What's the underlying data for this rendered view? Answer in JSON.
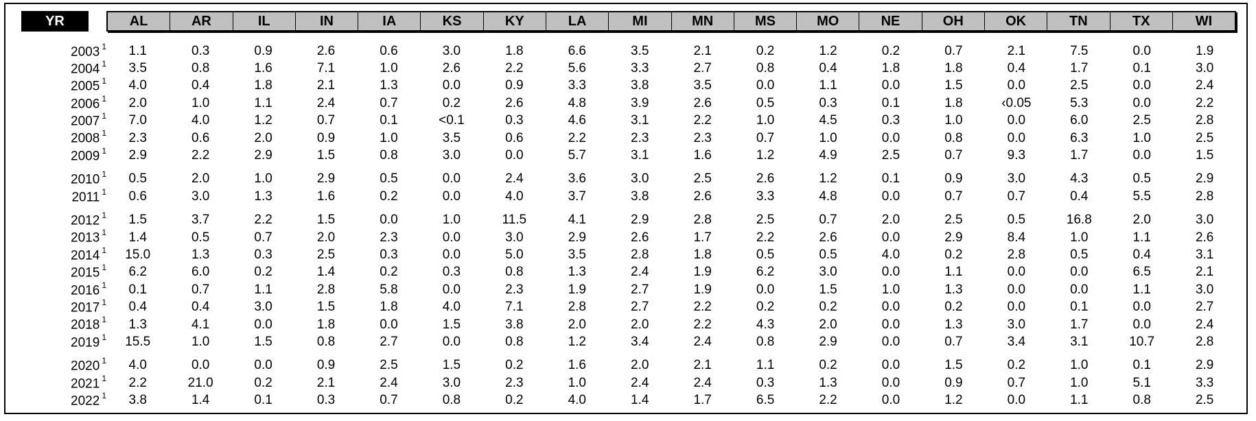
{
  "header": {
    "year_label": "YR",
    "states": [
      "AL",
      "AR",
      "IL",
      "IN",
      "IA",
      "KS",
      "KY",
      "LA",
      "MI",
      "MN",
      "MS",
      "MO",
      "NE",
      "OH",
      "OK",
      "TN",
      "TX",
      "WI"
    ]
  },
  "footnote_marker": "1",
  "rows": [
    {
      "year": "2003",
      "values": [
        "1.1",
        "0.3",
        "0.9",
        "2.6",
        "0.6",
        "3.0",
        "1.8",
        "6.6",
        "3.5",
        "2.1",
        "0.2",
        "1.2",
        "0.2",
        "0.7",
        "2.1",
        "7.5",
        "0.0",
        "1.9"
      ]
    },
    {
      "year": "2004",
      "values": [
        "3.5",
        "0.8",
        "1.6",
        "7.1",
        "1.0",
        "2.6",
        "2.2",
        "5.6",
        "3.3",
        "2.7",
        "0.8",
        "0.4",
        "1.8",
        "1.8",
        "0.4",
        "1.7",
        "0.1",
        "3.0"
      ]
    },
    {
      "year": "2005",
      "values": [
        "4.0",
        "0.4",
        "1.8",
        "2.1",
        "1.3",
        "0.0",
        "0.9",
        "3.3",
        "3.8",
        "3.5",
        "0.0",
        "1.1",
        "0.0",
        "1.5",
        "0.0",
        "2.5",
        "0.0",
        "2.4"
      ]
    },
    {
      "year": "2006",
      "values": [
        "2.0",
        "1.0",
        "1.1",
        "2.4",
        "0.7",
        "0.2",
        "2.6",
        "4.8",
        "3.9",
        "2.6",
        "0.5",
        "0.3",
        "0.1",
        "1.8",
        "‹0.05",
        "5.3",
        "0.0",
        "2.2"
      ]
    },
    {
      "year": "2007",
      "values": [
        "7.0",
        "4.0",
        "1.2",
        "0.7",
        "0.1",
        "<0.1",
        "0.3",
        "4.6",
        "3.1",
        "2.2",
        "1.0",
        "4.5",
        "0.3",
        "1.0",
        "0.0",
        "6.0",
        "2.5",
        "2.8"
      ]
    },
    {
      "year": "2008",
      "values": [
        "2.3",
        "0.6",
        "2.0",
        "0.9",
        "1.0",
        "3.5",
        "0.6",
        "2.2",
        "2.3",
        "2.3",
        "0.7",
        "1.0",
        "0.0",
        "0.8",
        "0.0",
        "6.3",
        "1.0",
        "2.5"
      ]
    },
    {
      "year": "2009",
      "values": [
        "2.9",
        "2.2",
        "2.9",
        "1.5",
        "0.8",
        "3.0",
        "0.0",
        "5.7",
        "3.1",
        "1.6",
        "1.2",
        "4.9",
        "2.5",
        "0.7",
        "9.3",
        "1.7",
        "0.0",
        "1.5"
      ]
    },
    {
      "year": "2010",
      "gap": true,
      "values": [
        "0.5",
        "2.0",
        "1.0",
        "2.9",
        "0.5",
        "0.0",
        "2.4",
        "3.6",
        "3.0",
        "2.5",
        "2.6",
        "1.2",
        "0.1",
        "0.9",
        "3.0",
        "4.3",
        "0.5",
        "2.9"
      ]
    },
    {
      "year": "2011",
      "values": [
        "0.6",
        "3.0",
        "1.3",
        "1.6",
        "0.2",
        "0.0",
        "4.0",
        "3.7",
        "3.8",
        "2.6",
        "3.3",
        "4.8",
        "0.0",
        "0.7",
        "0.7",
        "0.4",
        "5.5",
        "2.8"
      ]
    },
    {
      "year": "2012",
      "gap": true,
      "values": [
        "1.5",
        "3.7",
        "2.2",
        "1.5",
        "0.0",
        "1.0",
        "11.5",
        "4.1",
        "2.9",
        "2.8",
        "2.5",
        "0.7",
        "2.0",
        "2.5",
        "0.5",
        "16.8",
        "2.0",
        "3.0"
      ]
    },
    {
      "year": "2013",
      "values": [
        "1.4",
        "0.5",
        "0.7",
        "2.0",
        "2.3",
        "0.0",
        "3.0",
        "2.9",
        "2.6",
        "1.7",
        "2.2",
        "2.6",
        "0.0",
        "2.9",
        "8.4",
        "1.0",
        "1.1",
        "2.6"
      ]
    },
    {
      "year": "2014",
      "values": [
        "15.0",
        "1.3",
        "0.3",
        "2.5",
        "0.3",
        "0.0",
        "5.0",
        "3.5",
        "2.8",
        "1.8",
        "0.5",
        "0.5",
        "4.0",
        "0.2",
        "2.8",
        "0.5",
        "0.4",
        "3.1"
      ]
    },
    {
      "year": "2015",
      "values": [
        "6.2",
        "6.0",
        "0.2",
        "1.4",
        "0.2",
        "0.3",
        "0.8",
        "1.3",
        "2.4",
        "1.9",
        "6.2",
        "3.0",
        "0.0",
        "1.1",
        "0.0",
        "0.0",
        "6.5",
        "2.1"
      ]
    },
    {
      "year": "2016",
      "values": [
        "0.1",
        "0.7",
        "1.1",
        "2.8",
        "5.8",
        "0.0",
        "2.3",
        "1.9",
        "2.7",
        "1.9",
        "0.0",
        "1.5",
        "1.0",
        "1.3",
        "0.0",
        "0.0",
        "1.1",
        "3.0"
      ]
    },
    {
      "year": "2017",
      "values": [
        "0.4",
        "0.4",
        "3.0",
        "1.5",
        "1.8",
        "4.0",
        "7.1",
        "2.8",
        "2.7",
        "2.2",
        "0.2",
        "0.2",
        "0.0",
        "0.2",
        "0.0",
        "0.1",
        "0.0",
        "2.7"
      ]
    },
    {
      "year": "2018",
      "values": [
        "1.3",
        "4.1",
        "0.0",
        "1.8",
        "0.0",
        "1.5",
        "3.8",
        "2.0",
        "2.0",
        "2.2",
        "4.3",
        "2.0",
        "0.0",
        "1.3",
        "3.0",
        "1.7",
        "0.0",
        "2.4"
      ]
    },
    {
      "year": "2019",
      "values": [
        "15.5",
        "1.0",
        "1.5",
        "0.8",
        "2.7",
        "0.0",
        "0.8",
        "1.2",
        "3.4",
        "2.4",
        "0.8",
        "2.9",
        "0.0",
        "0.7",
        "3.4",
        "3.1",
        "10.7",
        "2.8"
      ]
    },
    {
      "year": "2020",
      "gap": true,
      "values": [
        "4.0",
        "0.0",
        "0.0",
        "0.9",
        "2.5",
        "1.5",
        "0.2",
        "1.6",
        "2.0",
        "2.1",
        "1.1",
        "0.2",
        "0.0",
        "1.5",
        "0.2",
        "1.0",
        "0.1",
        "2.9"
      ]
    },
    {
      "year": "2021",
      "values": [
        "2.2",
        "21.0",
        "0.2",
        "2.1",
        "2.4",
        "3.0",
        "2.3",
        "1.0",
        "2.4",
        "2.4",
        "0.3",
        "1.3",
        "0.0",
        "0.9",
        "0.7",
        "1.0",
        "5.1",
        "3.3"
      ]
    },
    {
      "year": "2022",
      "values": [
        "3.8",
        "1.4",
        "0.1",
        "0.3",
        "0.7",
        "0.8",
        "0.2",
        "4.0",
        "1.4",
        "1.7",
        "6.5",
        "2.2",
        "0.0",
        "1.2",
        "0.0",
        "1.1",
        "0.8",
        "2.5"
      ]
    }
  ]
}
